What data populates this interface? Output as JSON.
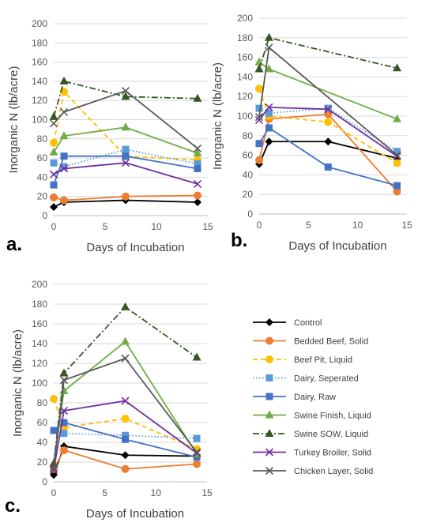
{
  "figure": {
    "legend": [
      {
        "name": "Control",
        "color": "#000000",
        "marker": "diamond",
        "dash": "solid"
      },
      {
        "name": "Bedded Beef, Solid",
        "color": "#ED7D31",
        "marker": "circle",
        "dash": "solid"
      },
      {
        "name": "Beef Pit, Liquid",
        "color": "#FFC000",
        "marker": "circle",
        "dash": "dash"
      },
      {
        "name": "Dairy, Seperated",
        "color": "#5B9BD5",
        "marker": "square",
        "dash": "dot"
      },
      {
        "name": "Dairy, Raw",
        "color": "#4472C4",
        "marker": "square",
        "dash": "solid"
      },
      {
        "name": "Swine Finish, Liquid",
        "color": "#70AD47",
        "marker": "triangle",
        "dash": "solid"
      },
      {
        "name": "Swine SOW, Liquid",
        "color": "#375623",
        "marker": "triangle",
        "dash": "dashdot"
      },
      {
        "name": "Turkey Broiler, Solid",
        "color": "#7030A0",
        "marker": "x",
        "dash": "solid"
      },
      {
        "name": "Chicken Layer, Solid",
        "color": "#595959",
        "marker": "x",
        "dash": "solid"
      }
    ]
  },
  "chart_data": [
    {
      "type": "line",
      "panel": "a.",
      "xlabel": "Days of Incubation",
      "ylabel": "Inorganic N (lb/acre)",
      "xlim": [
        0,
        15
      ],
      "ylim": [
        0,
        200
      ],
      "xticks": [
        0,
        5,
        10,
        15
      ],
      "yticks": [
        0,
        20,
        40,
        60,
        80,
        100,
        120,
        140,
        160,
        180,
        200
      ],
      "grid": "horizontal",
      "x": [
        0,
        1,
        7,
        14
      ],
      "series": [
        {
          "name": "Control",
          "values": [
            9,
            14,
            16,
            14
          ]
        },
        {
          "name": "Bedded Beef, Solid",
          "values": [
            19,
            16,
            20,
            21
          ]
        },
        {
          "name": "Beef Pit, Liquid",
          "values": [
            76,
            129,
            62,
            58
          ]
        },
        {
          "name": "Dairy, Seperated",
          "values": [
            55,
            51,
            69,
            54
          ]
        },
        {
          "name": "Dairy, Raw",
          "values": [
            32,
            62,
            62,
            49
          ]
        },
        {
          "name": "Swine Finish, Liquid",
          "values": [
            66,
            83,
            92,
            65
          ]
        },
        {
          "name": "Swine SOW, Liquid",
          "values": [
            103,
            140,
            124,
            122
          ]
        },
        {
          "name": "Turkey Broiler, Solid",
          "values": [
            43,
            49,
            55,
            33
          ]
        },
        {
          "name": "Chicken Layer, Solid",
          "values": [
            96,
            108,
            130,
            70
          ]
        }
      ]
    },
    {
      "type": "line",
      "panel": "b.",
      "xlabel": "Days of Incubation",
      "ylabel": "Inorganic N (lb/acre)",
      "xlim": [
        0,
        15
      ],
      "ylim": [
        0,
        200
      ],
      "xticks": [
        0,
        5,
        10,
        15
      ],
      "yticks": [
        0,
        20,
        40,
        60,
        80,
        100,
        120,
        140,
        160,
        180,
        200
      ],
      "grid": "horizontal",
      "x": [
        0,
        1,
        7,
        14
      ],
      "series": [
        {
          "name": "Control",
          "values": [
            51,
            74,
            74,
            57
          ]
        },
        {
          "name": "Bedded Beef, Solid",
          "values": [
            55,
            97,
            102,
            23
          ]
        },
        {
          "name": "Beef Pit, Liquid",
          "values": [
            128,
            100,
            94,
            52
          ]
        },
        {
          "name": "Dairy, Seperated",
          "values": [
            108,
            103,
            108,
            64
          ]
        },
        {
          "name": "Dairy, Raw",
          "values": [
            72,
            88,
            48,
            29
          ]
        },
        {
          "name": "Swine Finish, Liquid",
          "values": [
            155,
            148,
            null,
            97
          ]
        },
        {
          "name": "Swine SOW, Liquid",
          "values": [
            148,
            180,
            null,
            149
          ]
        },
        {
          "name": "Turkey Broiler, Solid",
          "values": [
            96,
            109,
            107,
            59
          ]
        },
        {
          "name": "Chicken Layer, Solid",
          "values": [
            99,
            170,
            null,
            60
          ]
        }
      ]
    },
    {
      "type": "line",
      "panel": "c.",
      "xlabel": "Days of Incubation",
      "ylabel": "Inorganic N (lb/acre)",
      "xlim": [
        0,
        15
      ],
      "ylim": [
        0,
        200
      ],
      "xticks": [
        0,
        5,
        10,
        15
      ],
      "yticks": [
        0,
        20,
        40,
        60,
        80,
        100,
        120,
        140,
        160,
        180,
        200
      ],
      "grid": "horizontal",
      "x": [
        0,
        1,
        7,
        14
      ],
      "series": [
        {
          "name": "Control",
          "values": [
            7,
            36,
            27,
            26
          ]
        },
        {
          "name": "Bedded Beef, Solid",
          "values": [
            13,
            32,
            13,
            18
          ]
        },
        {
          "name": "Beef Pit, Liquid",
          "values": [
            84,
            55,
            64,
            33
          ]
        },
        {
          "name": "Dairy, Seperated",
          "values": [
            52,
            49,
            47,
            44
          ]
        },
        {
          "name": "Dairy, Raw",
          "values": [
            52,
            60,
            43,
            25
          ]
        },
        {
          "name": "Swine Finish, Liquid",
          "values": [
            19,
            92,
            142,
            28
          ]
        },
        {
          "name": "Swine SOW, Liquid",
          "values": [
            18,
            110,
            177,
            126
          ]
        },
        {
          "name": "Turkey Broiler, Solid",
          "values": [
            12,
            72,
            82,
            29
          ]
        },
        {
          "name": "Chicken Layer, Solid",
          "values": [
            14,
            103,
            125,
            30
          ]
        }
      ]
    }
  ]
}
